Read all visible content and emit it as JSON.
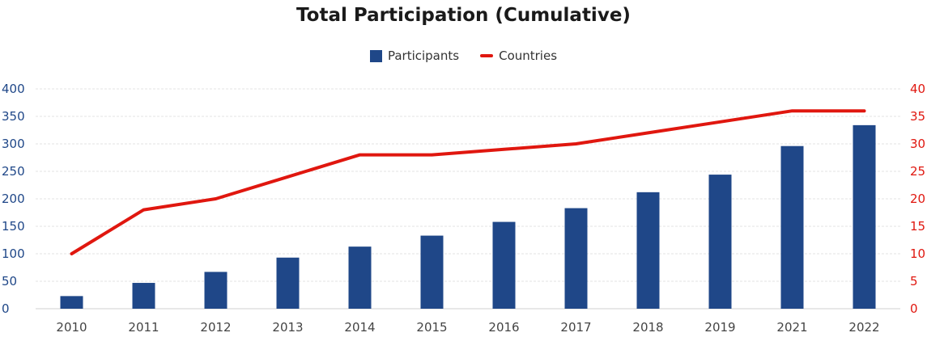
{
  "chart_data": {
    "type": "bar",
    "title": "Total Participation (Cumulative)",
    "categories": [
      "2010",
      "2011",
      "2012",
      "2013",
      "2014",
      "2015",
      "2016",
      "2017",
      "2018",
      "2019",
      "2021",
      "2022"
    ],
    "series": [
      {
        "name": "Participants",
        "type": "bar",
        "axis": "left",
        "color": "#1f4788",
        "values": [
          23,
          47,
          67,
          93,
          113,
          133,
          158,
          183,
          212,
          244,
          296,
          334
        ]
      },
      {
        "name": "Countries",
        "type": "line",
        "axis": "right",
        "color": "#e0170f",
        "values": [
          10,
          18,
          20,
          24,
          28,
          28,
          29,
          30,
          32,
          34,
          36,
          36
        ]
      }
    ],
    "ylim_left": [
      0,
      400
    ],
    "yticks_left": [
      "0",
      "50",
      "100",
      "150",
      "200",
      "250",
      "300",
      "350",
      "400"
    ],
    "ylim_right": [
      0,
      40
    ],
    "yticks_right": [
      "0",
      "5",
      "10",
      "15",
      "20",
      "25",
      "30",
      "35",
      "40"
    ],
    "left_axis_color": "#1f4788",
    "right_axis_color": "#e0170f",
    "grid": true,
    "legend_position": "top-center"
  }
}
